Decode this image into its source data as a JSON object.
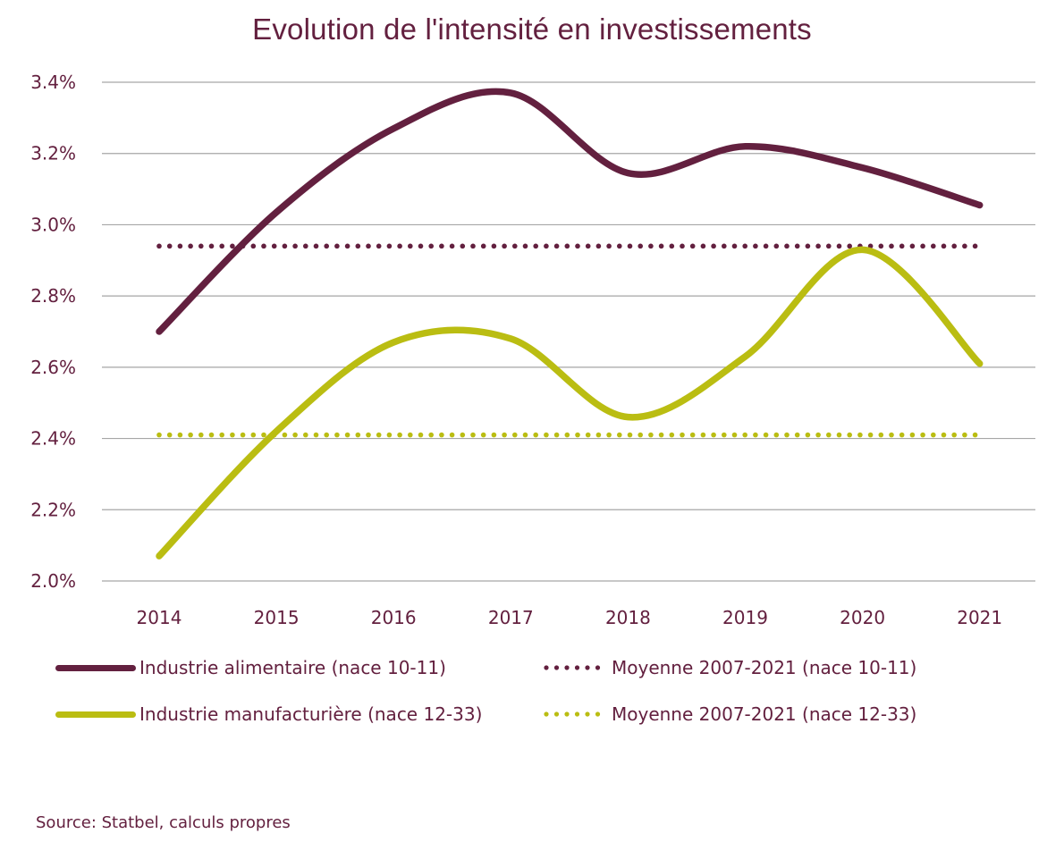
{
  "chart_data": {
    "type": "line",
    "title": "Evolution de l'intensité en investissements",
    "xlabel": "",
    "ylabel": "",
    "categories": [
      "2014",
      "2015",
      "2016",
      "2017",
      "2018",
      "2019",
      "2020",
      "2021"
    ],
    "ylim": [
      2.0,
      3.4
    ],
    "yticks": [
      2.0,
      2.2,
      2.4,
      2.6,
      2.8,
      3.0,
      3.2,
      3.4
    ],
    "ytick_labels": [
      "2.0%",
      "2.2%",
      "2.4%",
      "2.6%",
      "2.8%",
      "3.0%",
      "3.2%",
      "3.4%"
    ],
    "grid": true,
    "legend_position": "bottom",
    "series": [
      {
        "name": "Industrie alimentaire (nace 10-11)",
        "style": "solid",
        "color": "#63203F",
        "values": [
          2.7,
          3.035,
          3.27,
          3.37,
          3.145,
          3.22,
          3.16,
          3.055
        ]
      },
      {
        "name": "Moyenne 2007-2021 (nace 10-11)",
        "style": "dotted",
        "color": "#63203F",
        "values": [
          2.94,
          2.94,
          2.94,
          2.94,
          2.94,
          2.94,
          2.94,
          2.94
        ]
      },
      {
        "name": "Industrie manufacturière (nace 12-33)",
        "style": "solid",
        "color": "#BABD12",
        "values": [
          2.07,
          2.42,
          2.67,
          2.68,
          2.46,
          2.63,
          2.93,
          2.61
        ]
      },
      {
        "name": "Moyenne 2007-2021 (nace 12-33)",
        "style": "dotted",
        "color": "#BABD12",
        "values": [
          2.41,
          2.41,
          2.41,
          2.41,
          2.41,
          2.41,
          2.41,
          2.41
        ]
      }
    ],
    "source": "Source: Statbel, calculs propres"
  },
  "colors": {
    "primary": "#63203F",
    "secondary": "#BABD12",
    "grid": "#A6A6A6"
  }
}
